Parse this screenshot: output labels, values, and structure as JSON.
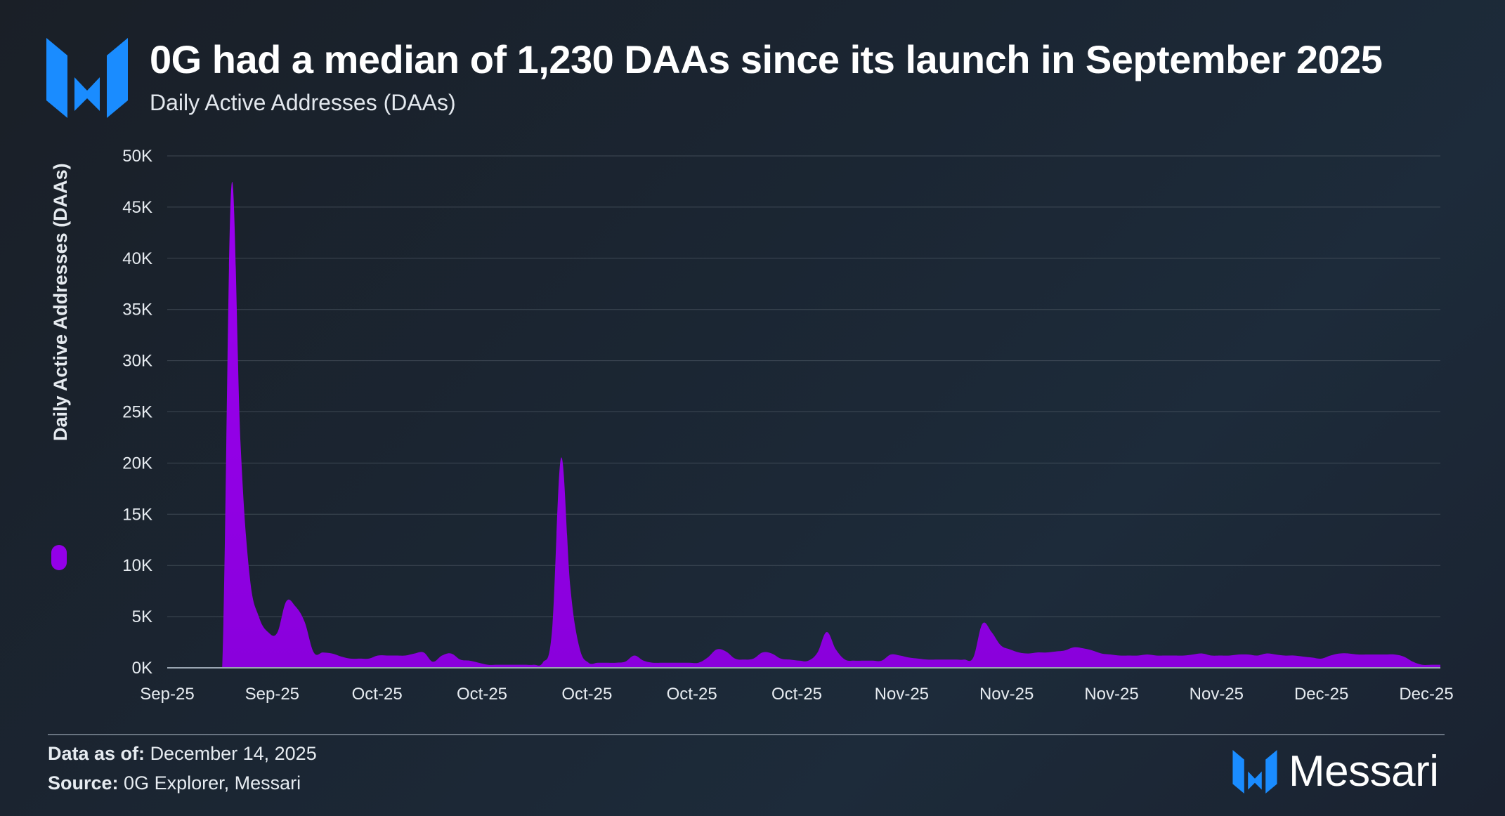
{
  "header": {
    "title": "0G had a median of 1,230 DAAs since its launch in September 2025",
    "subtitle": "Daily Active Addresses (DAAs)"
  },
  "footer": {
    "data_as_of_label": "Data as of:",
    "data_as_of_value": "December 14, 2025",
    "source_label": "Source:",
    "source_value": "0G Explorer, Messari"
  },
  "brand": {
    "name": "Messari",
    "icon": "messari-logo-icon",
    "color": "#1a8cff"
  },
  "chart_data": {
    "type": "area",
    "title": "0G had a median of 1,230 DAAs since its launch in September 2025",
    "subtitle": "Daily Active Addresses (DAAs)",
    "ylabel": "Daily Active Addresses (DAAs)",
    "ylim": [
      0,
      50000
    ],
    "grid": true,
    "legend_position": "left",
    "series": [
      {
        "name": "Daily Active Addresses (DAAs)",
        "color": "#9400e8",
        "values": [
          0,
          0,
          0,
          0,
          0,
          0,
          0,
          47000,
          22000,
          9000,
          5000,
          3500,
          3400,
          6500,
          6000,
          4500,
          1500,
          1500,
          1400,
          1100,
          900,
          900,
          900,
          1200,
          1200,
          1200,
          1200,
          1400,
          1500,
          600,
          1200,
          1400,
          800,
          700,
          500,
          300,
          300,
          300,
          300,
          300,
          300,
          500,
          3500,
          20500,
          8000,
          2000,
          500,
          500,
          500,
          500,
          600,
          1200,
          700,
          500,
          500,
          500,
          500,
          500,
          500,
          1000,
          1800,
          1600,
          900,
          800,
          900,
          1500,
          1400,
          900,
          800,
          700,
          700,
          1500,
          3500,
          1800,
          800,
          700,
          700,
          700,
          700,
          1300,
          1200,
          1000,
          900,
          800,
          800,
          800,
          800,
          800,
          1000,
          4300,
          3500,
          2200,
          1800,
          1500,
          1400,
          1500,
          1500,
          1600,
          1700,
          2000,
          1900,
          1700,
          1400,
          1300,
          1200,
          1200,
          1200,
          1300,
          1200,
          1200,
          1200,
          1200,
          1300,
          1400,
          1200,
          1200,
          1200,
          1300,
          1300,
          1200,
          1400,
          1300,
          1200,
          1200,
          1100,
          1000,
          900,
          1200,
          1400,
          1400,
          1300,
          1300,
          1300,
          1300,
          1300,
          1100,
          600,
          300,
          300,
          300
        ]
      }
    ],
    "x_tick_labels": [
      "Sep-25",
      "Sep-25",
      "Oct-25",
      "Oct-25",
      "Oct-25",
      "Oct-25",
      "Oct-25",
      "Nov-25",
      "Nov-25",
      "Nov-25",
      "Nov-25",
      "Dec-25",
      "Dec-25"
    ],
    "y_tick_labels": [
      "0K",
      "5K",
      "10K",
      "15K",
      "20K",
      "25K",
      "30K",
      "35K",
      "40K",
      "45K",
      "50K"
    ],
    "y_tick_values": [
      0,
      5000,
      10000,
      15000,
      20000,
      25000,
      30000,
      35000,
      40000,
      45000,
      50000
    ]
  }
}
